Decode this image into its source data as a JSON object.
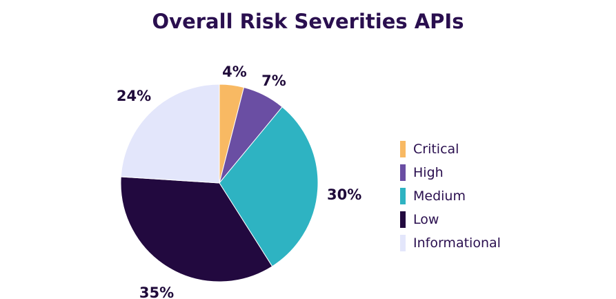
{
  "chart_data": {
    "type": "pie",
    "title": "Overall Risk Severities APIs",
    "categories": [
      "Critical",
      "High",
      "Medium",
      "Low",
      "Informational"
    ],
    "values": [
      4,
      7,
      30,
      35,
      24
    ],
    "labels": [
      "4%",
      "7%",
      "30%",
      "35%",
      "24%"
    ],
    "colors": [
      "#f8b963",
      "#6a4ea3",
      "#2eb3c2",
      "#22093f",
      "#e3e6fb"
    ],
    "start_angle": "12 o'clock",
    "direction": "clockwise",
    "legend_position": "right"
  }
}
